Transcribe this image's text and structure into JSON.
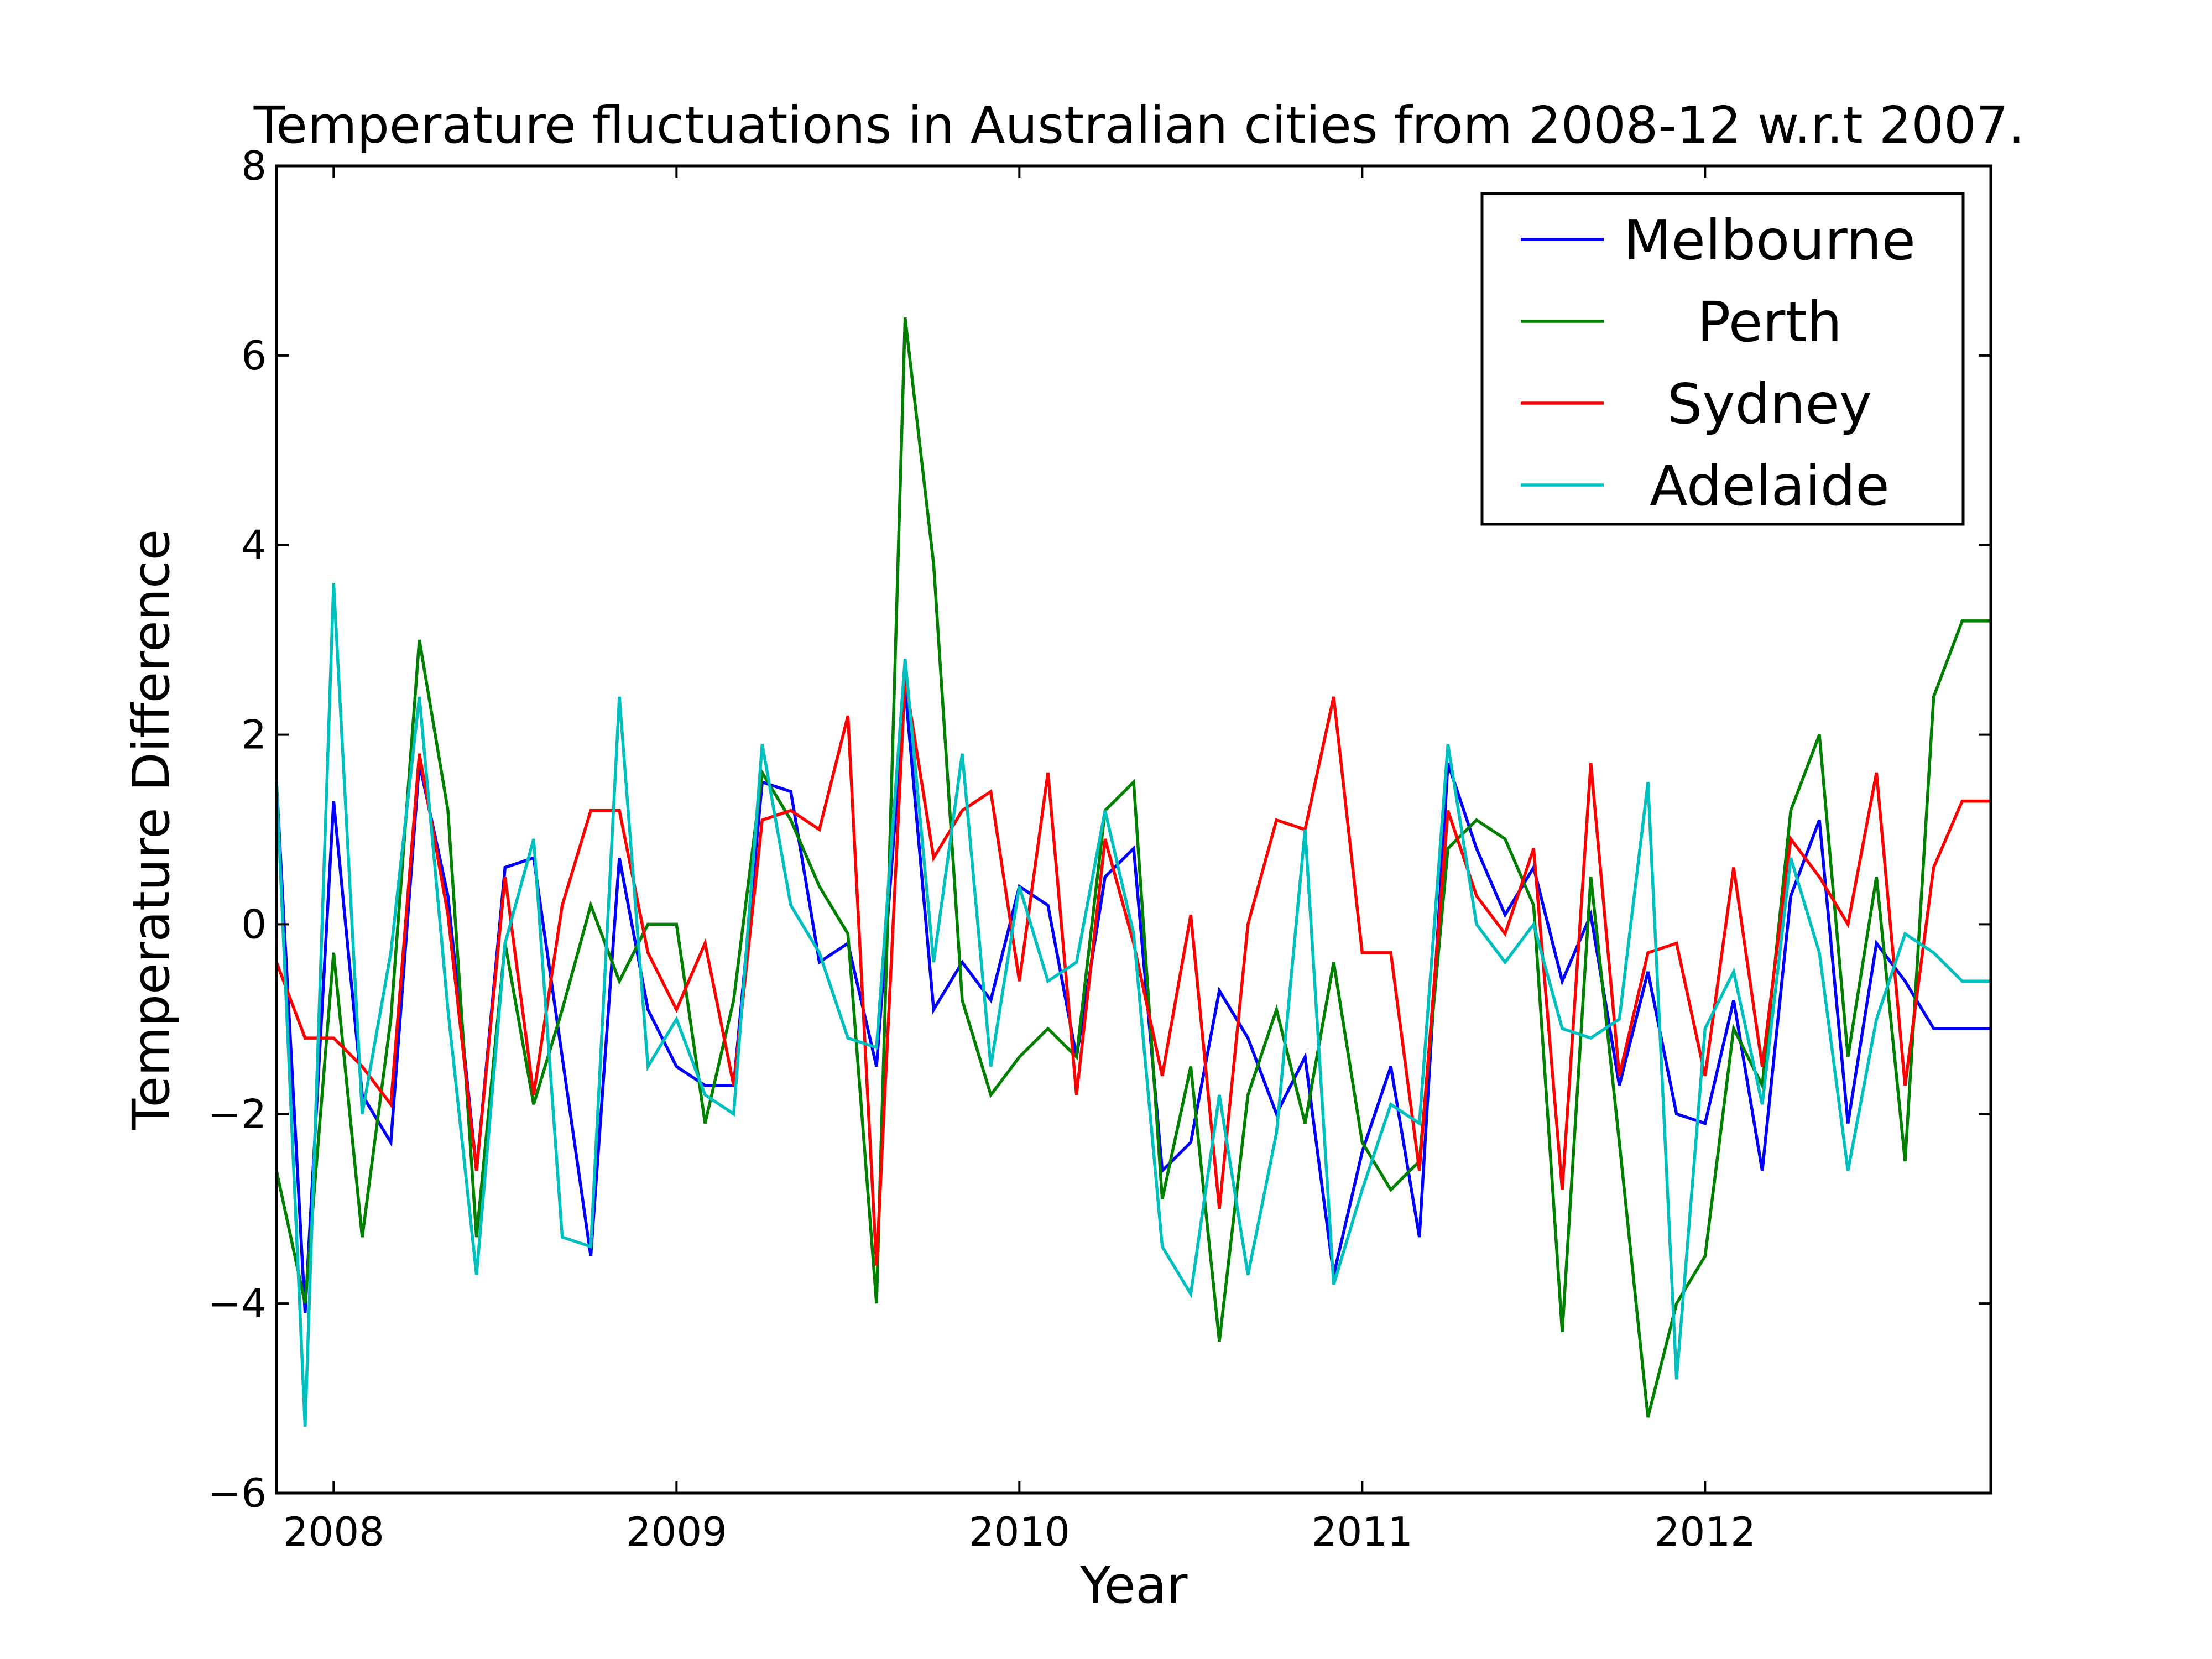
{
  "chart_data": {
    "type": "line",
    "title": "Temperature fluctuations in Australian cities from 2008-12 w.r.t 2007.",
    "xlabel": "Year",
    "ylabel": "Temperature Difference",
    "xlim": [
      "2007-11",
      "2012-11"
    ],
    "ylim": [
      -6,
      8
    ],
    "xticks": [
      "2008",
      "2009",
      "2010",
      "2011",
      "2012"
    ],
    "yticks": [
      -6,
      -4,
      -2,
      0,
      2,
      4,
      6,
      8
    ],
    "ytick_labels": [
      "−6",
      "−4",
      "−2",
      "0",
      "2",
      "4",
      "6",
      "8"
    ],
    "grid": false,
    "legend_position": "top-right",
    "x": [
      "2007-11",
      "2007-12",
      "2008-01",
      "2008-02",
      "2008-03",
      "2008-04",
      "2008-05",
      "2008-06",
      "2008-07",
      "2008-08",
      "2008-09",
      "2008-10",
      "2008-11",
      "2008-12",
      "2009-01",
      "2009-02",
      "2009-03",
      "2009-04",
      "2009-05",
      "2009-06",
      "2009-07",
      "2009-08",
      "2009-09",
      "2009-10",
      "2009-11",
      "2009-12",
      "2010-01",
      "2010-02",
      "2010-03",
      "2010-04",
      "2010-05",
      "2010-06",
      "2010-07",
      "2010-08",
      "2010-09",
      "2010-10",
      "2010-11",
      "2010-12",
      "2011-01",
      "2011-02",
      "2011-03",
      "2011-04",
      "2011-05",
      "2011-06",
      "2011-07",
      "2011-08",
      "2011-09",
      "2011-10",
      "2011-11",
      "2011-12",
      "2012-01",
      "2012-02",
      "2012-03",
      "2012-04",
      "2012-05",
      "2012-06",
      "2012-07",
      "2012-08",
      "2012-09",
      "2012-10",
      "2012-11"
    ],
    "series": [
      {
        "name": "Melbourne",
        "color": "#0000ff",
        "values": [
          1.5,
          -4.1,
          1.3,
          -1.8,
          -2.3,
          1.7,
          0.3,
          -2.6,
          0.6,
          0.7,
          -1.4,
          -3.5,
          0.7,
          -0.9,
          -1.5,
          -1.7,
          -1.7,
          1.5,
          1.4,
          -0.4,
          -0.2,
          -1.5,
          2.5,
          -0.9,
          -0.4,
          -0.8,
          0.4,
          0.2,
          -1.4,
          0.5,
          0.8,
          -2.6,
          -2.3,
          -0.7,
          -1.2,
          -2.0,
          -1.4,
          -3.7,
          -2.4,
          -1.5,
          -3.3,
          1.7,
          0.8,
          0.1,
          0.6,
          -0.6,
          0.1,
          -1.7,
          -0.5,
          -2.0,
          -2.1,
          -0.8,
          -2.6,
          0.3,
          1.1,
          -2.1,
          -0.2,
          -0.6,
          -1.1,
          -1.1,
          -1.1
        ]
      },
      {
        "name": "Perth",
        "color": "#008000",
        "values": [
          -2.6,
          -4.0,
          -0.3,
          -3.3,
          -1.0,
          3.0,
          1.2,
          -3.3,
          -0.2,
          -1.9,
          -0.9,
          0.2,
          -0.6,
          0.0,
          0.0,
          -2.1,
          -0.8,
          1.6,
          1.1,
          0.4,
          -0.1,
          -4.0,
          6.4,
          3.8,
          -0.8,
          -1.8,
          -1.4,
          -1.1,
          -1.4,
          1.2,
          1.5,
          -2.9,
          -1.5,
          -4.4,
          -1.8,
          -0.9,
          -2.1,
          -0.4,
          -2.3,
          -2.8,
          -2.5,
          0.8,
          1.1,
          0.9,
          0.2,
          -4.3,
          0.5,
          -2.3,
          -5.2,
          -4.0,
          -3.5,
          -1.1,
          -1.7,
          1.2,
          2.0,
          -1.4,
          0.5,
          -2.5,
          2.4,
          3.2,
          3.2
        ]
      },
      {
        "name": "Sydney",
        "color": "#ff0000",
        "values": [
          -0.4,
          -1.2,
          -1.2,
          -1.5,
          -1.9,
          1.8,
          0.1,
          -2.6,
          0.5,
          -1.8,
          0.2,
          1.2,
          1.2,
          -0.3,
          -0.9,
          -0.2,
          -1.7,
          1.1,
          1.2,
          1.0,
          2.2,
          -3.6,
          2.6,
          0.7,
          1.2,
          1.4,
          -0.6,
          1.6,
          -1.8,
          0.9,
          -0.2,
          -1.6,
          0.1,
          -3.0,
          0.0,
          1.1,
          1.0,
          2.4,
          -0.3,
          -0.3,
          -2.6,
          1.2,
          0.3,
          -0.1,
          0.8,
          -2.8,
          1.7,
          -1.6,
          -0.3,
          -0.2,
          -1.6,
          0.6,
          -1.5,
          0.9,
          0.5,
          0.0,
          1.6,
          -1.7,
          0.6,
          1.3,
          1.3
        ]
      },
      {
        "name": "Adelaide",
        "color": "#00bfbf",
        "values": [
          1.5,
          -5.3,
          3.6,
          -2.0,
          -0.3,
          2.4,
          -0.9,
          -3.7,
          -0.2,
          0.9,
          -3.3,
          -3.4,
          2.4,
          -1.5,
          -1.0,
          -1.8,
          -2.0,
          1.9,
          0.2,
          -0.3,
          -1.2,
          -1.3,
          2.8,
          -0.4,
          1.8,
          -1.5,
          0.4,
          -0.6,
          -0.4,
          1.2,
          -0.1,
          -3.4,
          -3.9,
          -1.8,
          -3.7,
          -2.2,
          1.0,
          -3.8,
          -2.8,
          -1.9,
          -2.1,
          1.9,
          0.0,
          -0.4,
          0.0,
          -1.1,
          -1.2,
          -1.0,
          1.5,
          -4.8,
          -1.1,
          -0.5,
          -1.9,
          0.7,
          -0.3,
          -2.6,
          -1.0,
          -0.1,
          -0.3,
          -0.6,
          -0.6
        ]
      }
    ]
  }
}
